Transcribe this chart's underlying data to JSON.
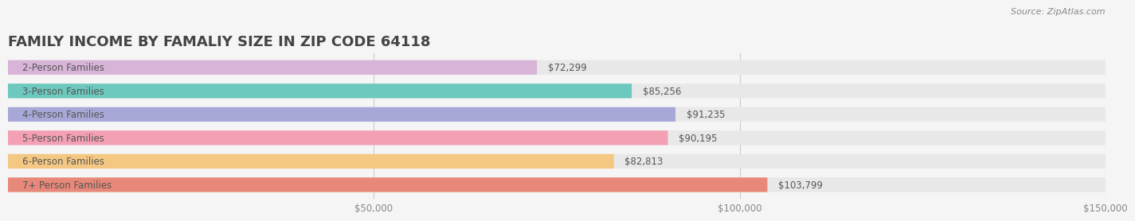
{
  "title": "FAMILY INCOME BY FAMALIY SIZE IN ZIP CODE 64118",
  "source": "Source: ZipAtlas.com",
  "categories": [
    "2-Person Families",
    "3-Person Families",
    "4-Person Families",
    "5-Person Families",
    "6-Person Families",
    "7+ Person Families"
  ],
  "values": [
    72299,
    85256,
    91235,
    90195,
    82813,
    103799
  ],
  "bar_colors": [
    "#d8b4d8",
    "#6dc8be",
    "#a8a8d8",
    "#f4a0b4",
    "#f4c882",
    "#e88878"
  ],
  "value_labels": [
    "$72,299",
    "$85,256",
    "$91,235",
    "$90,195",
    "$82,813",
    "$103,799"
  ],
  "xlim": [
    0,
    150000
  ],
  "xticks": [
    0,
    50000,
    100000,
    150000
  ],
  "xtick_labels": [
    "",
    "$50,000",
    "$100,000",
    "$150,000"
  ],
  "background_color": "#f5f5f5",
  "bar_bg_color": "#e8e8e8",
  "title_fontsize": 13,
  "label_fontsize": 8.5,
  "value_fontsize": 8.5,
  "bar_height": 0.62
}
